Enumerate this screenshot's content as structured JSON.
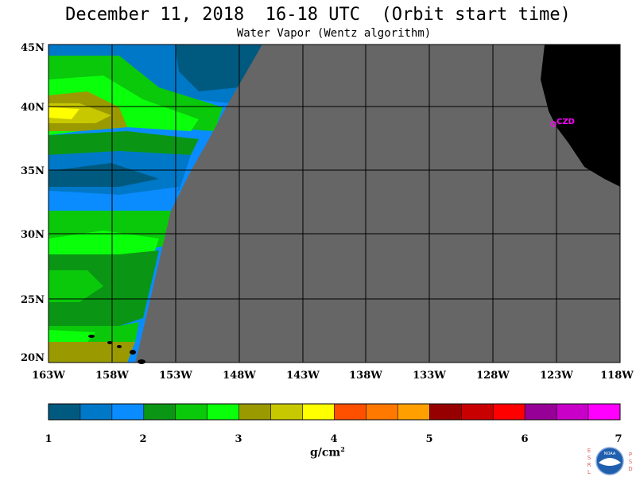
{
  "header": {
    "title": "December 11, 2018  16-18 UTC  (Orbit start time)",
    "subtitle": "Water Vapor (Wentz algorithm)"
  },
  "map": {
    "lat_ticks": [
      "45N",
      "40N",
      "35N",
      "30N",
      "25N",
      "20N"
    ],
    "lon_ticks": [
      "163W",
      "158W",
      "153W",
      "148W",
      "143W",
      "138W",
      "133W",
      "128W",
      "123W",
      "118W"
    ],
    "station_label": "CZD",
    "colors": {
      "no_data": "#666666",
      "land": "#000000",
      "station": "#ff00ff"
    }
  },
  "colorbar": {
    "ticks": [
      "1",
      "2",
      "3",
      "4",
      "5",
      "6",
      "7"
    ],
    "unit_base": "g/cm",
    "unit_exp": "2",
    "colors": [
      "#005a80",
      "#0078c8",
      "#0a8cff",
      "#0a9614",
      "#0ac80a",
      "#0aff0a",
      "#9a9a00",
      "#c8c800",
      "#ffff00",
      "#ff5000",
      "#ff7800",
      "#ffa000",
      "#960000",
      "#c80000",
      "#ff0000",
      "#960096",
      "#c800c8",
      "#ff00ff"
    ]
  },
  "logo": {
    "left_letters": [
      "E",
      "S",
      "R",
      "L"
    ],
    "right_letters": [
      "P",
      "S",
      "D"
    ],
    "center_text": "NOAA"
  }
}
